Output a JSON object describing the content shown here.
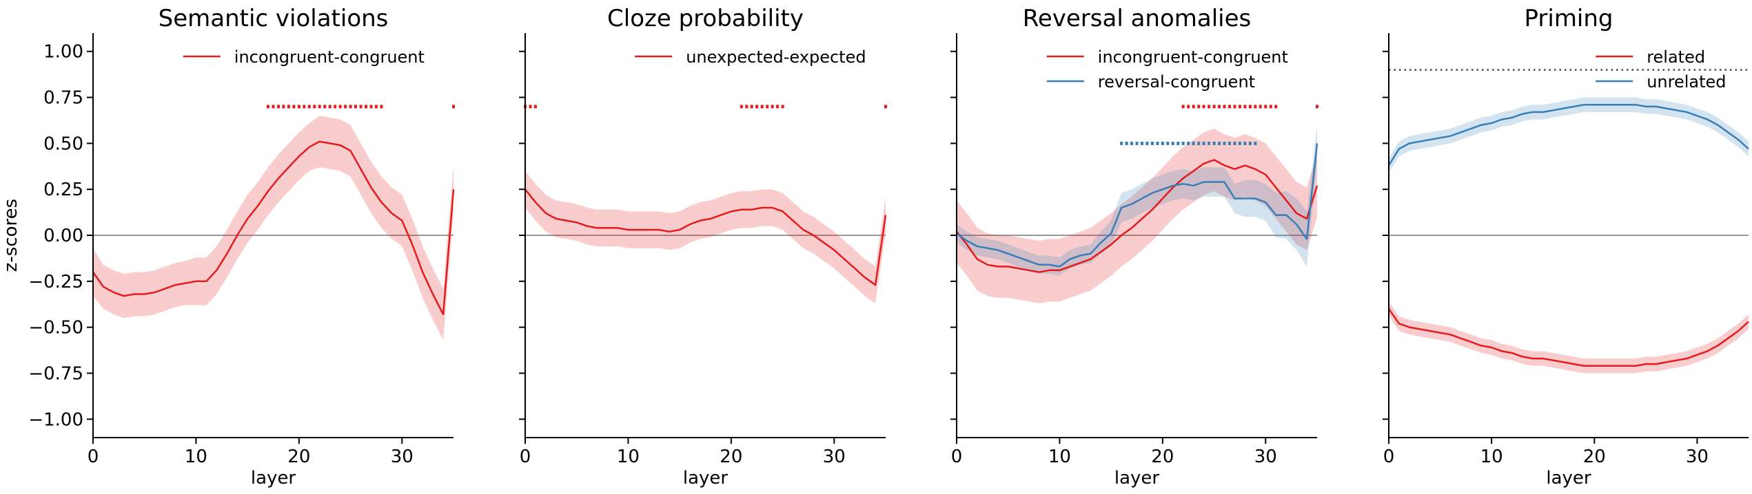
{
  "chart_data": [
    {
      "type": "line",
      "title": "Semantic violations",
      "xlabel": "layer",
      "ylabel": "z-scores",
      "xlim": [
        0,
        35
      ],
      "ylim": [
        -1.1,
        1.1
      ],
      "xticks": [
        0,
        10,
        20,
        30
      ],
      "yticks": [
        -1.0,
        -0.75,
        -0.5,
        -0.25,
        0.0,
        0.25,
        0.5,
        0.75,
        1.0
      ],
      "ytick_labels": [
        "−1.00",
        "−0.75",
        "−0.50",
        "−0.25",
        "0.00",
        "0.25",
        "0.50",
        "0.75",
        "1.00"
      ],
      "show_yticklabels": true,
      "legend": "upper-right",
      "zero_line": true,
      "series": [
        {
          "name": "incongruent-congruent",
          "color": "#e41a1c",
          "x": [
            0,
            1,
            2,
            3,
            4,
            5,
            6,
            7,
            8,
            9,
            10,
            11,
            12,
            13,
            14,
            15,
            16,
            17,
            18,
            19,
            20,
            21,
            22,
            23,
            24,
            25,
            26,
            27,
            28,
            29,
            30,
            31,
            32,
            33,
            34,
            35
          ],
          "y": [
            -0.2,
            -0.28,
            -0.31,
            -0.33,
            -0.32,
            -0.32,
            -0.31,
            -0.29,
            -0.27,
            -0.26,
            -0.25,
            -0.25,
            -0.19,
            -0.1,
            0.0,
            0.09,
            0.16,
            0.24,
            0.31,
            0.37,
            0.43,
            0.48,
            0.51,
            0.5,
            0.49,
            0.46,
            0.36,
            0.26,
            0.18,
            0.12,
            0.08,
            -0.05,
            -0.2,
            -0.32,
            -0.43,
            0.25
          ],
          "band": [
            0.13,
            0.12,
            0.12,
            0.12,
            0.12,
            0.12,
            0.12,
            0.12,
            0.12,
            0.12,
            0.13,
            0.13,
            0.13,
            0.13,
            0.13,
            0.13,
            0.13,
            0.13,
            0.13,
            0.13,
            0.13,
            0.13,
            0.14,
            0.14,
            0.14,
            0.14,
            0.14,
            0.14,
            0.14,
            0.14,
            0.14,
            0.14,
            0.14,
            0.14,
            0.14,
            0.13
          ],
          "significant": [
            [
              17,
              28
            ],
            [
              35,
              35
            ]
          ],
          "sig_y": 0.7
        }
      ]
    },
    {
      "type": "line",
      "title": "Cloze probability",
      "xlabel": "layer",
      "ylabel": "",
      "xlim": [
        0,
        35
      ],
      "ylim": [
        -1.1,
        1.1
      ],
      "xticks": [
        0,
        10,
        20,
        30
      ],
      "yticks": [
        -1.0,
        -0.75,
        -0.5,
        -0.25,
        0.0,
        0.25,
        0.5,
        0.75,
        1.0
      ],
      "show_yticklabels": false,
      "legend": "upper-right",
      "zero_line": true,
      "series": [
        {
          "name": "unexpected-expected",
          "color": "#e41a1c",
          "x": [
            0,
            1,
            2,
            3,
            4,
            5,
            6,
            7,
            8,
            9,
            10,
            11,
            12,
            13,
            14,
            15,
            16,
            17,
            18,
            19,
            20,
            21,
            22,
            23,
            24,
            25,
            26,
            27,
            28,
            29,
            30,
            31,
            32,
            33,
            34,
            35
          ],
          "y": [
            0.25,
            0.18,
            0.12,
            0.09,
            0.08,
            0.07,
            0.05,
            0.04,
            0.04,
            0.04,
            0.03,
            0.03,
            0.03,
            0.03,
            0.02,
            0.03,
            0.06,
            0.08,
            0.09,
            0.11,
            0.13,
            0.14,
            0.14,
            0.15,
            0.15,
            0.13,
            0.08,
            0.03,
            0.0,
            -0.04,
            -0.08,
            -0.13,
            -0.18,
            -0.23,
            -0.27,
            0.11
          ],
          "band": [
            0.1,
            0.1,
            0.1,
            0.1,
            0.1,
            0.1,
            0.1,
            0.1,
            0.1,
            0.1,
            0.1,
            0.1,
            0.1,
            0.1,
            0.1,
            0.1,
            0.1,
            0.1,
            0.1,
            0.1,
            0.1,
            0.1,
            0.1,
            0.1,
            0.1,
            0.1,
            0.1,
            0.1,
            0.1,
            0.1,
            0.1,
            0.1,
            0.1,
            0.1,
            0.1,
            0.1
          ],
          "significant": [
            [
              0,
              1
            ],
            [
              21,
              25
            ],
            [
              35,
              35
            ]
          ],
          "sig_y": 0.7
        }
      ]
    },
    {
      "type": "line",
      "title": "Reversal anomalies",
      "xlabel": "layer",
      "ylabel": "",
      "xlim": [
        0,
        35
      ],
      "ylim": [
        -1.1,
        1.1
      ],
      "xticks": [
        0,
        10,
        20,
        30
      ],
      "yticks": [
        -1.0,
        -0.75,
        -0.5,
        -0.25,
        0.0,
        0.25,
        0.5,
        0.75,
        1.0
      ],
      "show_yticklabels": false,
      "legend": "upper-right",
      "zero_line": true,
      "series": [
        {
          "name": "incongruent-congruent",
          "color": "#e41a1c",
          "x": [
            0,
            1,
            2,
            3,
            4,
            5,
            6,
            7,
            8,
            9,
            10,
            11,
            12,
            13,
            14,
            15,
            16,
            17,
            18,
            19,
            20,
            21,
            22,
            23,
            24,
            25,
            26,
            27,
            28,
            29,
            30,
            31,
            32,
            33,
            34,
            35
          ],
          "y": [
            0.02,
            -0.05,
            -0.13,
            -0.16,
            -0.17,
            -0.17,
            -0.18,
            -0.19,
            -0.2,
            -0.19,
            -0.19,
            -0.17,
            -0.15,
            -0.13,
            -0.09,
            -0.05,
            0.0,
            0.04,
            0.09,
            0.14,
            0.2,
            0.26,
            0.31,
            0.35,
            0.39,
            0.41,
            0.38,
            0.36,
            0.38,
            0.36,
            0.33,
            0.26,
            0.19,
            0.12,
            0.09,
            0.27
          ],
          "band": [
            0.17,
            0.17,
            0.17,
            0.17,
            0.17,
            0.17,
            0.17,
            0.17,
            0.17,
            0.17,
            0.17,
            0.17,
            0.17,
            0.17,
            0.17,
            0.17,
            0.17,
            0.17,
            0.17,
            0.17,
            0.17,
            0.17,
            0.17,
            0.17,
            0.17,
            0.17,
            0.17,
            0.17,
            0.17,
            0.17,
            0.17,
            0.17,
            0.17,
            0.17,
            0.17,
            0.17
          ],
          "significant": [
            [
              22,
              31
            ],
            [
              35,
              35
            ]
          ],
          "sig_y": 0.7
        },
        {
          "name": "reversal-congruent",
          "color": "#377eb8",
          "x": [
            0,
            1,
            2,
            3,
            4,
            5,
            6,
            7,
            8,
            9,
            10,
            11,
            12,
            13,
            14,
            15,
            16,
            17,
            18,
            19,
            20,
            21,
            22,
            23,
            24,
            25,
            26,
            27,
            28,
            29,
            30,
            31,
            32,
            33,
            34,
            35
          ],
          "y": [
            0.01,
            -0.03,
            -0.06,
            -0.07,
            -0.08,
            -0.1,
            -0.12,
            -0.14,
            -0.16,
            -0.16,
            -0.17,
            -0.13,
            -0.11,
            -0.1,
            -0.04,
            0.01,
            0.15,
            0.17,
            0.2,
            0.23,
            0.25,
            0.27,
            0.28,
            0.27,
            0.29,
            0.29,
            0.29,
            0.2,
            0.2,
            0.2,
            0.18,
            0.11,
            0.11,
            0.06,
            -0.02,
            0.5
          ],
          "band": [
            0.05,
            0.05,
            0.05,
            0.05,
            0.05,
            0.05,
            0.05,
            0.05,
            0.05,
            0.05,
            0.05,
            0.05,
            0.05,
            0.05,
            0.06,
            0.07,
            0.08,
            0.08,
            0.08,
            0.08,
            0.08,
            0.08,
            0.08,
            0.08,
            0.08,
            0.08,
            0.08,
            0.08,
            0.1,
            0.1,
            0.1,
            0.12,
            0.13,
            0.14,
            0.15,
            0.1
          ],
          "significant": [
            [
              16,
              29
            ]
          ],
          "sig_y": 0.5
        }
      ]
    },
    {
      "type": "line",
      "title": "Priming",
      "xlabel": "layer",
      "ylabel": "",
      "xlim": [
        0,
        35
      ],
      "ylim": [
        -1.1,
        1.1
      ],
      "xticks": [
        0,
        10,
        20,
        30
      ],
      "yticks": [
        -1.0,
        -0.75,
        -0.5,
        -0.25,
        0.0,
        0.25,
        0.5,
        0.75,
        1.0
      ],
      "show_yticklabels": false,
      "legend": "upper-right",
      "zero_line": true,
      "reference_line": 0.9,
      "series": [
        {
          "name": "related",
          "color": "#e41a1c",
          "x": [
            0,
            1,
            2,
            3,
            4,
            5,
            6,
            7,
            8,
            9,
            10,
            11,
            12,
            13,
            14,
            15,
            16,
            17,
            18,
            19,
            20,
            21,
            22,
            23,
            24,
            25,
            26,
            27,
            28,
            29,
            30,
            31,
            32,
            33,
            34,
            35
          ],
          "y": [
            -0.4,
            -0.48,
            -0.5,
            -0.51,
            -0.52,
            -0.53,
            -0.54,
            -0.56,
            -0.58,
            -0.6,
            -0.61,
            -0.63,
            -0.64,
            -0.66,
            -0.67,
            -0.67,
            -0.68,
            -0.69,
            -0.7,
            -0.71,
            -0.71,
            -0.71,
            -0.71,
            -0.71,
            -0.71,
            -0.7,
            -0.7,
            -0.69,
            -0.68,
            -0.67,
            -0.65,
            -0.63,
            -0.6,
            -0.56,
            -0.52,
            -0.47
          ],
          "band": [
            0.04,
            0.04,
            0.04,
            0.04,
            0.04,
            0.04,
            0.04,
            0.04,
            0.04,
            0.04,
            0.04,
            0.04,
            0.04,
            0.04,
            0.04,
            0.04,
            0.04,
            0.04,
            0.04,
            0.04,
            0.04,
            0.04,
            0.04,
            0.04,
            0.04,
            0.04,
            0.04,
            0.04,
            0.04,
            0.04,
            0.04,
            0.04,
            0.04,
            0.04,
            0.04,
            0.04
          ]
        },
        {
          "name": "unrelated",
          "color": "#377eb8",
          "x": [
            0,
            1,
            2,
            3,
            4,
            5,
            6,
            7,
            8,
            9,
            10,
            11,
            12,
            13,
            14,
            15,
            16,
            17,
            18,
            19,
            20,
            21,
            22,
            23,
            24,
            25,
            26,
            27,
            28,
            29,
            30,
            31,
            32,
            33,
            34,
            35
          ],
          "y": [
            0.38,
            0.47,
            0.5,
            0.51,
            0.52,
            0.53,
            0.54,
            0.56,
            0.58,
            0.6,
            0.61,
            0.63,
            0.64,
            0.66,
            0.67,
            0.67,
            0.68,
            0.69,
            0.7,
            0.71,
            0.71,
            0.71,
            0.71,
            0.71,
            0.71,
            0.7,
            0.7,
            0.69,
            0.68,
            0.67,
            0.65,
            0.63,
            0.6,
            0.56,
            0.52,
            0.47
          ],
          "band": [
            0.04,
            0.04,
            0.04,
            0.04,
            0.04,
            0.04,
            0.04,
            0.04,
            0.04,
            0.04,
            0.04,
            0.04,
            0.04,
            0.04,
            0.04,
            0.04,
            0.04,
            0.04,
            0.04,
            0.04,
            0.04,
            0.04,
            0.04,
            0.04,
            0.04,
            0.04,
            0.04,
            0.04,
            0.04,
            0.04,
            0.04,
            0.04,
            0.04,
            0.04,
            0.04,
            0.04
          ]
        }
      ]
    }
  ]
}
